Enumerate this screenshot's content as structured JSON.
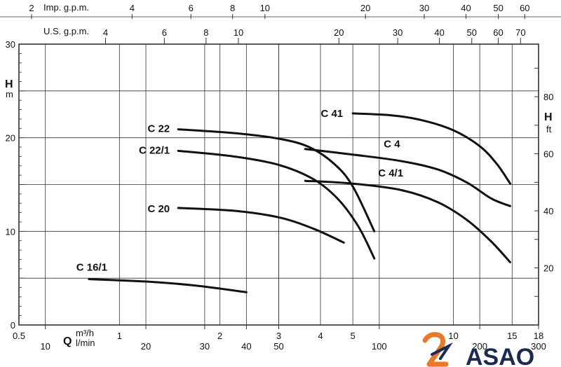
{
  "chart_data": {
    "type": "line",
    "scales": {
      "x_primary": "m3/h",
      "x_scale": "log",
      "xlim": [
        0.5,
        18
      ],
      "ylim": [
        0,
        30
      ],
      "y2lim": [
        0,
        98.4
      ]
    },
    "axes": {
      "top_imp": {
        "title": "Imp. g.p.m.",
        "ticks": [
          "2",
          "4",
          "6",
          "8",
          "10",
          "20",
          "30",
          "40",
          "50",
          "60"
        ],
        "tick_values": [
          2,
          4,
          6,
          8,
          10,
          20,
          30,
          40,
          50,
          60
        ]
      },
      "top_us": {
        "title": "U.S. g.p.m.",
        "ticks": [
          "4",
          "6",
          "8",
          "10",
          "20",
          "30",
          "40",
          "50",
          "60",
          "70"
        ],
        "tick_values": [
          4,
          6,
          8,
          10,
          20,
          30,
          40,
          50,
          60,
          70
        ]
      },
      "bottom_m3h": {
        "title": "m³/h",
        "ticks": [
          "0.5",
          "1",
          "2",
          "3",
          "4",
          "5",
          "10",
          "15",
          "18"
        ],
        "tick_values": [
          0.5,
          1,
          2,
          3,
          4,
          5,
          10,
          15,
          18
        ]
      },
      "bottom_lmin": {
        "title": "l/min",
        "ticks": [
          "10",
          "20",
          "30",
          "40",
          "50",
          "100",
          "200",
          "300"
        ],
        "tick_values": [
          10,
          20,
          30,
          40,
          50,
          100,
          200,
          300
        ]
      },
      "left_m": {
        "title": "H",
        "unit": "m",
        "ticks": [
          "0",
          "10",
          "20",
          "30"
        ],
        "tick_values": [
          0,
          10,
          20,
          30
        ]
      },
      "right_ft": {
        "title": "H",
        "unit": "ft",
        "ticks": [
          "20",
          "40",
          "60",
          "80"
        ],
        "tick_values": [
          20,
          40,
          60,
          80
        ]
      },
      "q_label": "Q"
    },
    "grid": true,
    "series": [
      {
        "name": "C 16/1",
        "points": [
          [
            0.81,
            4.9
          ],
          [
            1.25,
            4.6
          ],
          [
            1.7,
            4.2
          ],
          [
            2.4,
            3.5
          ]
        ]
      },
      {
        "name": "C 20",
        "points": [
          [
            1.5,
            12.5
          ],
          [
            2.2,
            12.2
          ],
          [
            3.0,
            11.5
          ],
          [
            3.8,
            10.3
          ],
          [
            4.7,
            8.8
          ]
        ]
      },
      {
        "name": "C 22",
        "points": [
          [
            1.5,
            20.9
          ],
          [
            2.2,
            20.5
          ],
          [
            3.0,
            19.9
          ],
          [
            3.7,
            19.0
          ],
          [
            4.4,
            17.2
          ],
          [
            5.0,
            14.8
          ],
          [
            5.8,
            10.0
          ]
        ]
      },
      {
        "name": "C 22/1",
        "points": [
          [
            1.5,
            18.6
          ],
          [
            2.2,
            18.0
          ],
          [
            3.0,
            17.1
          ],
          [
            3.8,
            15.6
          ],
          [
            4.5,
            13.5
          ],
          [
            5.2,
            10.5
          ],
          [
            5.8,
            7.1
          ]
        ]
      },
      {
        "name": "C 4",
        "points": [
          [
            3.6,
            18.8
          ],
          [
            5.0,
            18.2
          ],
          [
            7.0,
            17.5
          ],
          [
            9.0,
            16.6
          ],
          [
            11.0,
            15.2
          ],
          [
            13.0,
            13.5
          ],
          [
            14.8,
            12.7
          ]
        ]
      },
      {
        "name": "C 4/1",
        "points": [
          [
            3.6,
            15.4
          ],
          [
            5.0,
            15.1
          ],
          [
            7.0,
            14.4
          ],
          [
            9.0,
            13.1
          ],
          [
            11.0,
            11.2
          ],
          [
            13.0,
            8.9
          ],
          [
            14.8,
            6.7
          ]
        ]
      },
      {
        "name": "C 41",
        "points": [
          [
            5.0,
            22.6
          ],
          [
            6.5,
            22.4
          ],
          [
            8.0,
            21.9
          ],
          [
            10.0,
            20.8
          ],
          [
            12.0,
            19.1
          ],
          [
            13.5,
            17.2
          ],
          [
            14.8,
            15.1
          ]
        ]
      }
    ]
  },
  "logo": {
    "text": "ASAO",
    "primary_color": "#1a2a52",
    "accent_color": "#e8782a"
  }
}
